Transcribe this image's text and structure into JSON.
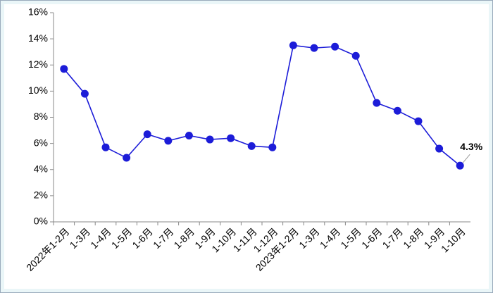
{
  "chart_data": {
    "type": "line",
    "categories": [
      "2022年1-2月",
      "1-3月",
      "1-4月",
      "1-5月",
      "1-6月",
      "1-7月",
      "1-8月",
      "1-9月",
      "1-10月",
      "1-11月",
      "1-12月",
      "2023年1-2月",
      "1-3月",
      "1-4月",
      "1-5月",
      "1-6月",
      "1-7月",
      "1-8月",
      "1-9月",
      "1-10月"
    ],
    "values": [
      11.7,
      9.8,
      5.7,
      4.9,
      6.7,
      6.2,
      6.6,
      6.3,
      6.4,
      5.8,
      5.7,
      13.5,
      13.3,
      13.4,
      12.7,
      9.1,
      8.5,
      7.7,
      5.6,
      4.3
    ],
    "value_labels": [
      null,
      null,
      null,
      null,
      null,
      null,
      null,
      null,
      null,
      null,
      null,
      null,
      null,
      null,
      null,
      null,
      null,
      null,
      null,
      "4.3%"
    ],
    "color": "#1c1cd8",
    "ylim": [
      0,
      16
    ],
    "yticks": [
      {
        "value": 0,
        "label": "0%"
      },
      {
        "value": 2,
        "label": "2%"
      },
      {
        "value": 4,
        "label": "4%"
      },
      {
        "value": 6,
        "label": "6%"
      },
      {
        "value": 8,
        "label": "8%"
      },
      {
        "value": 10,
        "label": "10%"
      },
      {
        "value": 12,
        "label": "12%"
      },
      {
        "value": 14,
        "label": "14%"
      },
      {
        "value": 16,
        "label": "16%"
      }
    ],
    "grid": false
  }
}
